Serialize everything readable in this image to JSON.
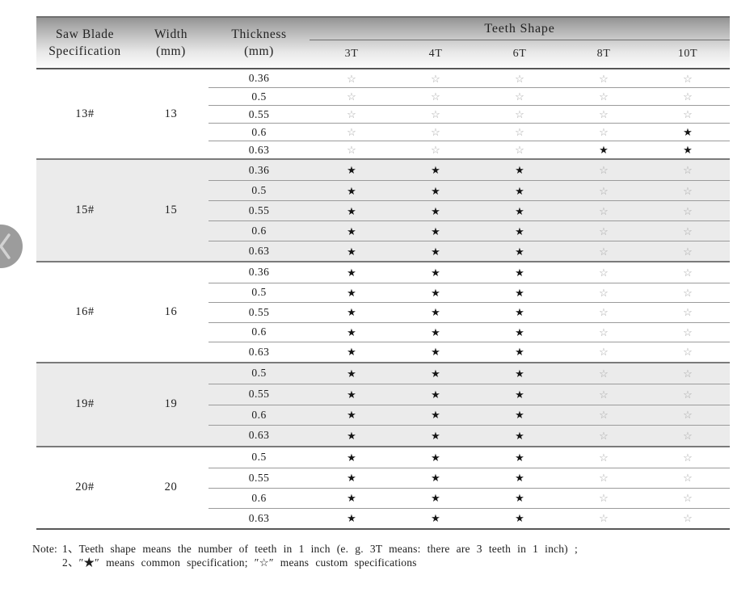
{
  "table": {
    "header": {
      "col1_line1": "Saw Blade",
      "col1_line2": "Specification",
      "col2_line1": "Width",
      "col2_line2": "(mm)",
      "col3_line1": "Thickness",
      "col3_line2": "(mm)",
      "teeth_title": "Teeth Shape",
      "teeth_cols": [
        "3T",
        "4T",
        "6T",
        "8T",
        "10T"
      ]
    },
    "legend": {
      "common_symbol": "★",
      "custom_symbol": "☆"
    },
    "groups": [
      {
        "spec": "13#",
        "width": "13",
        "shaded": false,
        "rows": [
          {
            "thickness": "0.36",
            "stars": [
              "☆",
              "☆",
              "☆",
              "☆",
              "☆"
            ]
          },
          {
            "thickness": "0.5",
            "stars": [
              "☆",
              "☆",
              "☆",
              "☆",
              "☆"
            ]
          },
          {
            "thickness": "0.55",
            "stars": [
              "☆",
              "☆",
              "☆",
              "☆",
              "☆"
            ]
          },
          {
            "thickness": "0.6",
            "stars": [
              "☆",
              "☆",
              "☆",
              "☆",
              "★"
            ]
          },
          {
            "thickness": "0.63",
            "stars": [
              "☆",
              "☆",
              "☆",
              "★",
              "★"
            ]
          }
        ]
      },
      {
        "spec": "15#",
        "width": "15",
        "shaded": true,
        "rows": [
          {
            "thickness": "0.36",
            "stars": [
              "★",
              "★",
              "★",
              "☆",
              "☆"
            ]
          },
          {
            "thickness": "0.5",
            "stars": [
              "★",
              "★",
              "★",
              "☆",
              "☆"
            ]
          },
          {
            "thickness": "0.55",
            "stars": [
              "★",
              "★",
              "★",
              "☆",
              "☆"
            ]
          },
          {
            "thickness": "0.6",
            "stars": [
              "★",
              "★",
              "★",
              "☆",
              "☆"
            ]
          },
          {
            "thickness": "0.63",
            "stars": [
              "★",
              "★",
              "★",
              "☆",
              "☆"
            ]
          }
        ]
      },
      {
        "spec": "16#",
        "width": "16",
        "shaded": false,
        "rows": [
          {
            "thickness": "0.36",
            "stars": [
              "★",
              "★",
              "★",
              "☆",
              "☆"
            ]
          },
          {
            "thickness": "0.5",
            "stars": [
              "★",
              "★",
              "★",
              "☆",
              "☆"
            ]
          },
          {
            "thickness": "0.55",
            "stars": [
              "★",
              "★",
              "★",
              "☆",
              "☆"
            ]
          },
          {
            "thickness": "0.6",
            "stars": [
              "★",
              "★",
              "★",
              "☆",
              "☆"
            ]
          },
          {
            "thickness": "0.63",
            "stars": [
              "★",
              "★",
              "★",
              "☆",
              "☆"
            ]
          }
        ]
      },
      {
        "spec": "19#",
        "width": "19",
        "shaded": true,
        "rows": [
          {
            "thickness": "0.5",
            "stars": [
              "★",
              "★",
              "★",
              "☆",
              "☆"
            ]
          },
          {
            "thickness": "0.55",
            "stars": [
              "★",
              "★",
              "★",
              "☆",
              "☆"
            ]
          },
          {
            "thickness": "0.6",
            "stars": [
              "★",
              "★",
              "★",
              "☆",
              "☆"
            ]
          },
          {
            "thickness": "0.63",
            "stars": [
              "★",
              "★",
              "★",
              "☆",
              "☆"
            ]
          }
        ]
      },
      {
        "spec": "20#",
        "width": "20",
        "shaded": false,
        "rows": [
          {
            "thickness": "0.5",
            "stars": [
              "★",
              "★",
              "★",
              "☆",
              "☆"
            ]
          },
          {
            "thickness": "0.55",
            "stars": [
              "★",
              "★",
              "★",
              "☆",
              "☆"
            ]
          },
          {
            "thickness": "0.6",
            "stars": [
              "★",
              "★",
              "★",
              "☆",
              "☆"
            ]
          },
          {
            "thickness": "0.63",
            "stars": [
              "★",
              "★",
              "★",
              "☆",
              "☆"
            ]
          }
        ]
      }
    ]
  },
  "note": {
    "label": "Note:",
    "line1": "1、Teeth shape means the number of teeth in 1 inch (e. g.  3T   means:  there are 3 teeth in 1 inch) ;",
    "line2": "2、″★″ means common specification;  ″☆″  means custom specifications"
  }
}
